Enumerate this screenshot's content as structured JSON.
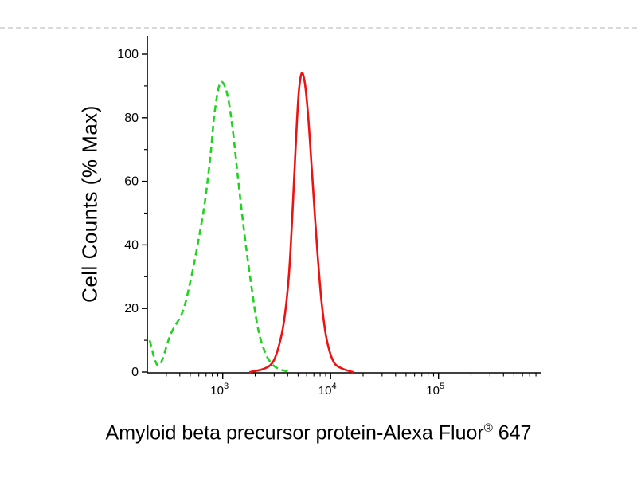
{
  "page": {
    "background": "#ffffff",
    "separator_color": "#d9d9d9"
  },
  "chart_data": {
    "type": "line",
    "chart_kind": "flow-cytometry-histogram",
    "title": "",
    "ylabel": "Cell Counts (% Max)",
    "xlabel_parts": {
      "pre": "Amyloid beta precursor protein-Alexa Fluor",
      "sup": "®",
      "post": " 647"
    },
    "x_scale": "log10",
    "xlim": [
      200,
      900000
    ],
    "ylim": [
      0,
      100
    ],
    "y_ticks": [
      0,
      20,
      40,
      60,
      80,
      100
    ],
    "y_minor_step": 10,
    "x_major_ticks": [
      {
        "value": 1000,
        "base": "10",
        "exp": "3"
      },
      {
        "value": 10000,
        "base": "10",
        "exp": "4"
      },
      {
        "value": 100000,
        "base": "10",
        "exp": "5"
      }
    ],
    "axis_color": "#000000",
    "grid": false,
    "legend": "none",
    "series": [
      {
        "name": "green-dashed",
        "color": "#1fd41f",
        "line_style": "dashed",
        "points": [
          [
            210,
            10
          ],
          [
            255,
            2
          ],
          [
            330,
            12
          ],
          [
            425,
            19
          ],
          [
            505,
            29
          ],
          [
            600,
            42
          ],
          [
            687,
            54
          ],
          [
            775,
            69
          ],
          [
            843,
            82
          ],
          [
            950,
            91
          ],
          [
            1090,
            88
          ],
          [
            1230,
            77
          ],
          [
            1407,
            59
          ],
          [
            1610,
            42
          ],
          [
            1845,
            27
          ],
          [
            2115,
            14
          ],
          [
            2420,
            7
          ],
          [
            2780,
            3
          ],
          [
            3300,
            1
          ],
          [
            4200,
            0
          ]
        ]
      },
      {
        "name": "red-solid",
        "color": "#ee1111",
        "line_style": "solid",
        "points": [
          [
            1800,
            0
          ],
          [
            2400,
            1
          ],
          [
            2900,
            3
          ],
          [
            3300,
            8
          ],
          [
            3700,
            16
          ],
          [
            4100,
            30
          ],
          [
            4400,
            48
          ],
          [
            4700,
            68
          ],
          [
            4900,
            80
          ],
          [
            5100,
            89
          ],
          [
            5400,
            94
          ],
          [
            5700,
            92
          ],
          [
            6000,
            86
          ],
          [
            6400,
            74
          ],
          [
            6900,
            57
          ],
          [
            7500,
            39
          ],
          [
            8200,
            23
          ],
          [
            9000,
            12
          ],
          [
            9900,
            6
          ],
          [
            11000,
            2.5
          ],
          [
            13000,
            1
          ],
          [
            16000,
            0
          ]
        ]
      }
    ]
  }
}
